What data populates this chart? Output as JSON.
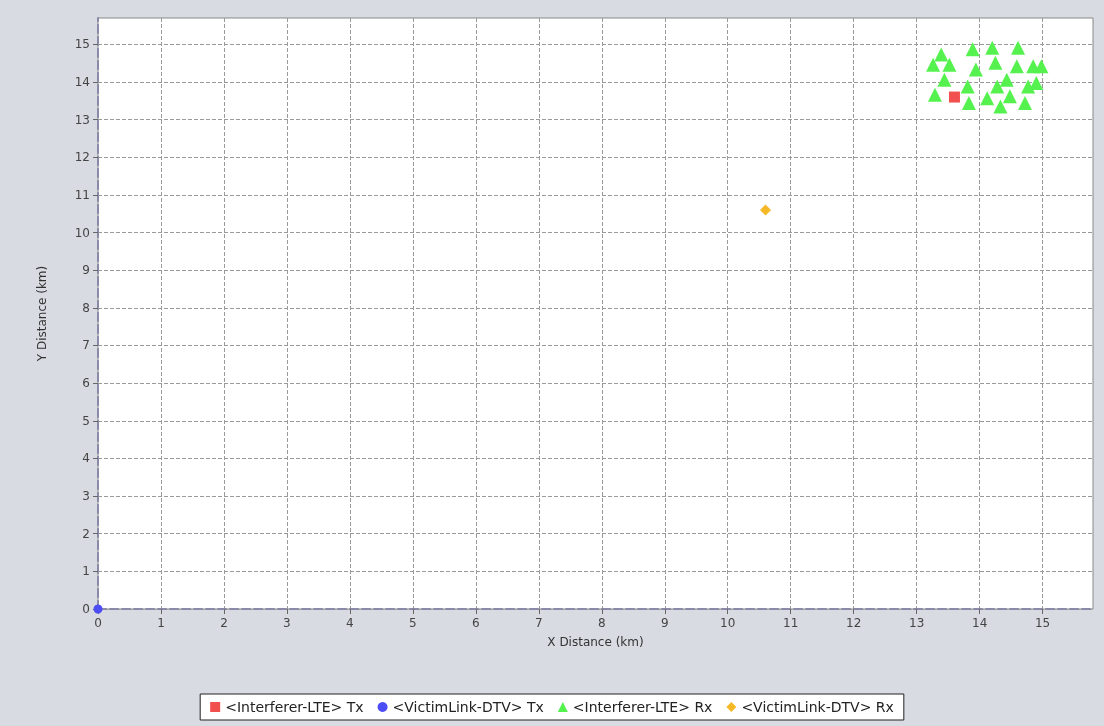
{
  "chart_data": {
    "type": "scatter",
    "xlabel": "X Distance (km)",
    "ylabel": "Y Distance (km)",
    "xlim": [
      0,
      15.8
    ],
    "ylim": [
      0,
      15.7
    ],
    "xticks": [
      0,
      1,
      2,
      3,
      4,
      5,
      6,
      7,
      8,
      9,
      10,
      11,
      12,
      13,
      14,
      15
    ],
    "yticks": [
      0,
      1,
      2,
      3,
      4,
      5,
      6,
      7,
      8,
      9,
      10,
      11,
      12,
      13,
      14,
      15
    ],
    "grid": true,
    "legend": "bottom",
    "series": [
      {
        "name": "<Interferer-LTE> Tx",
        "color": "#f24f4f",
        "marker": "square",
        "x": [
          13.6
        ],
        "values": [
          13.6
        ]
      },
      {
        "name": "<VictimLink-DTV> Tx",
        "color": "#4d4df5",
        "marker": "circle",
        "x": [
          0
        ],
        "values": [
          0
        ]
      },
      {
        "name": "<Interferer-LTE> Rx",
        "color": "#55f24f",
        "marker": "triangle",
        "x": [
          13.26,
          13.39,
          13.52,
          13.29,
          13.44,
          13.83,
          13.89,
          13.94,
          13.81,
          14.2,
          14.25,
          14.12,
          14.33,
          14.43,
          14.61,
          14.59,
          14.48,
          14.77,
          14.85,
          14.98,
          14.72,
          14.9,
          14.28
        ],
        "values": [
          14.46,
          14.73,
          14.46,
          13.66,
          14.06,
          13.44,
          14.87,
          14.33,
          13.88,
          14.91,
          14.51,
          13.57,
          13.35,
          14.06,
          14.91,
          14.42,
          13.62,
          13.88,
          14.42,
          14.42,
          13.44,
          13.97,
          13.88
        ]
      },
      {
        "name": "<VictimLink-DTV> Rx",
        "color": "#f5b826",
        "marker": "diamond",
        "x": [
          10.6
        ],
        "values": [
          10.6
        ]
      }
    ]
  }
}
